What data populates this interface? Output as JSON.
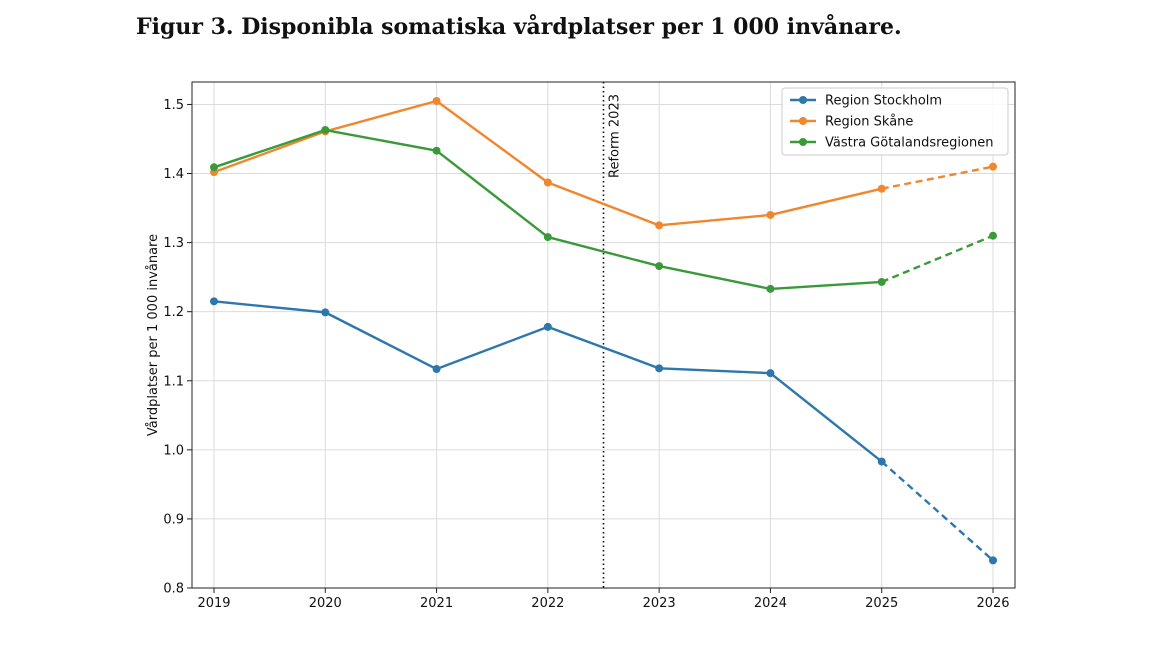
{
  "figure": {
    "title": "Figur 3. Disponibla somatiska vårdplatser per 1 000 invånare."
  },
  "chart_data": {
    "type": "line",
    "x": [
      2019,
      2020,
      2021,
      2022,
      2023,
      2024,
      2025,
      2026
    ],
    "ylabel": "Vårdplatser per 1 000 invånare",
    "xlabel": "",
    "ylim": [
      0.8,
      1.5
    ],
    "yticks": [
      0.8,
      0.9,
      1.0,
      1.1,
      1.2,
      1.3,
      1.4,
      1.5
    ],
    "grid": true,
    "legend_position": "top-right",
    "projection_from": 2025,
    "series": [
      {
        "name": "Region Stockholm",
        "color": "#2e77ad",
        "values": [
          1.215,
          1.199,
          1.117,
          1.178,
          1.118,
          1.111,
          0.983,
          0.84
        ]
      },
      {
        "name": "Region Skåne",
        "color": "#f0862e",
        "values": [
          1.402,
          1.461,
          1.505,
          1.387,
          1.325,
          1.34,
          1.378,
          1.41
        ]
      },
      {
        "name": "Västra Götalandsregionen",
        "color": "#3a9a3a",
        "values": [
          1.409,
          1.463,
          1.433,
          1.308,
          1.266,
          1.233,
          1.243,
          1.31
        ]
      }
    ],
    "annotations": [
      {
        "text": "Reform 2023",
        "x": 2022.5,
        "style": "dotted-vertical-line"
      }
    ]
  }
}
